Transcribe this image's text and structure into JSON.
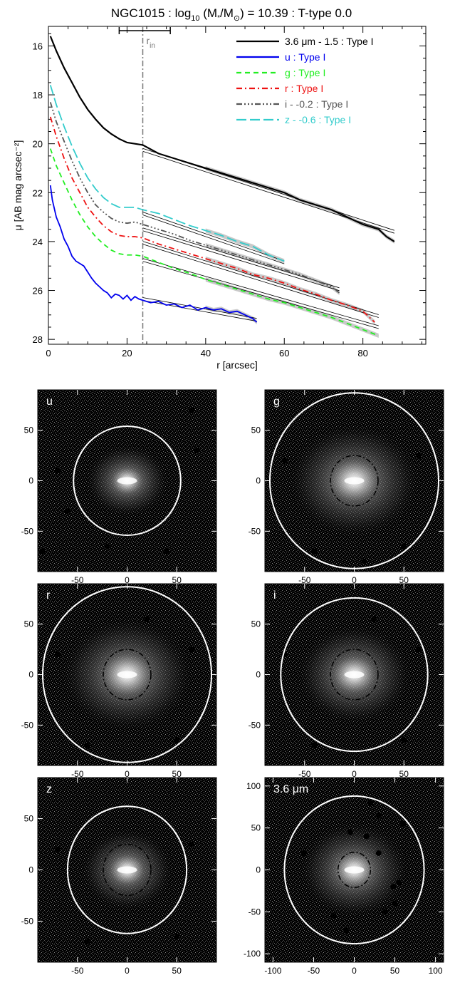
{
  "title": {
    "name": "NGC1015",
    "logmass": "10.39",
    "ttype": "0.0",
    "prefix": "NGC1015 : log",
    "sub10": "10",
    "paren_open": " (M",
    "star": "*",
    "slash": "/M",
    "sun": "⊙",
    "rest": ") = 10.39 : T-type 0.0"
  },
  "rin_label": "r",
  "rin_sub": "in",
  "colors": {
    "ch1": "#000000",
    "u": "#0000ee",
    "g": "#22ee22",
    "r": "#ee1111",
    "i": "#555555",
    "z": "#33cccc",
    "fit": "#000000",
    "err": "#bbbbbb",
    "ellipse": "#ffffff"
  },
  "chart_data": [
    {
      "type": "line",
      "title": "NGC1015 : log10 (M*/M⊙) = 10.39 : T-type 0.0",
      "xlabel": "r [arcsec]",
      "ylabel": "μ [AB mag arcsec⁻²]",
      "xlim": [
        0,
        96
      ],
      "ylim": [
        28.2,
        15.2
      ],
      "xticks": [
        "0",
        "20",
        "40",
        "60",
        "80"
      ],
      "yticks": [
        "16",
        "18",
        "20",
        "22",
        "24",
        "26",
        "28"
      ],
      "r_in": 24,
      "r_in_range": [
        18,
        31
      ],
      "legend_placement": "top-right",
      "series": [
        {
          "name": "3.6 μm - 1.5 : Type I",
          "key": "ch1",
          "dash": "",
          "x": [
            0.5,
            2,
            4,
            6,
            8,
            10,
            12,
            14,
            16,
            18,
            20,
            22,
            24,
            28,
            32,
            36,
            40,
            44,
            48,
            52,
            56,
            60,
            64,
            68,
            72,
            76,
            80,
            84,
            86,
            88
          ],
          "y": [
            15.6,
            16.2,
            16.9,
            17.5,
            18.1,
            18.6,
            19.0,
            19.35,
            19.6,
            19.8,
            19.95,
            20.0,
            20.05,
            20.4,
            20.6,
            20.8,
            21.0,
            21.2,
            21.4,
            21.6,
            21.8,
            22.0,
            22.3,
            22.5,
            22.7,
            23.0,
            23.3,
            23.5,
            23.8,
            24.0
          ],
          "fit": [
            [
              24,
              20.25
            ],
            [
              88,
              23.6
            ]
          ]
        },
        {
          "name": "u : Type I",
          "key": "u",
          "dash": "",
          "x": [
            0.5,
            1,
            2,
            3,
            4,
            5,
            6,
            7,
            8,
            9,
            10,
            11,
            12,
            13,
            14,
            15,
            16,
            17,
            18,
            19,
            20,
            21,
            22,
            23,
            24,
            26,
            28,
            30,
            32,
            34,
            36,
            38,
            40,
            42,
            44,
            46,
            48,
            50,
            52,
            53
          ],
          "y": [
            21.7,
            22.3,
            23.0,
            23.4,
            23.9,
            24.2,
            24.6,
            24.8,
            24.9,
            25.0,
            25.25,
            25.5,
            25.7,
            25.85,
            26.0,
            26.1,
            26.3,
            26.15,
            26.2,
            26.35,
            26.2,
            26.4,
            26.25,
            26.35,
            26.4,
            26.5,
            26.45,
            26.6,
            26.55,
            26.7,
            26.6,
            26.8,
            26.7,
            26.8,
            26.75,
            26.9,
            26.85,
            27.0,
            27.15,
            27.3
          ],
          "fit": [
            [
              24,
              26.35
            ],
            [
              53,
              27.2
            ]
          ]
        },
        {
          "name": "g : Type I",
          "key": "g",
          "dash": "7,5",
          "x": [
            0.5,
            2,
            4,
            6,
            8,
            10,
            12,
            14,
            16,
            18,
            20,
            22,
            24,
            28,
            32,
            36,
            40,
            44,
            48,
            52,
            56,
            60,
            64,
            68,
            72,
            76,
            80,
            84
          ],
          "y": [
            20.2,
            20.9,
            21.6,
            22.3,
            22.9,
            23.4,
            23.8,
            24.1,
            24.35,
            24.5,
            24.55,
            24.55,
            24.6,
            24.85,
            25.1,
            25.3,
            25.55,
            25.75,
            25.95,
            26.15,
            26.35,
            26.5,
            26.7,
            26.9,
            27.1,
            27.35,
            27.6,
            27.85
          ],
          "fit": [
            [
              24,
              24.75
            ],
            [
              84,
              27.5
            ]
          ]
        },
        {
          "name": "r : Type I",
          "key": "r",
          "dash": "8,4,2,4",
          "x": [
            0.5,
            2,
            4,
            6,
            8,
            10,
            12,
            14,
            16,
            18,
            20,
            22,
            24,
            28,
            32,
            36,
            40,
            44,
            48,
            52,
            56,
            60,
            64,
            68,
            72,
            76,
            80,
            83
          ],
          "y": [
            18.9,
            19.7,
            20.6,
            21.4,
            22.0,
            22.6,
            23.0,
            23.35,
            23.6,
            23.75,
            23.8,
            23.8,
            23.85,
            24.1,
            24.3,
            24.5,
            24.7,
            24.9,
            25.1,
            25.35,
            25.5,
            25.7,
            25.95,
            26.15,
            26.4,
            26.6,
            26.85,
            27.3
          ],
          "fit": [
            [
              24,
              24.05
            ],
            [
              84,
              27.05
            ]
          ]
        },
        {
          "name": "i - -0.2 : Type I",
          "key": "i",
          "dash": "8,3,2,3,2,3,2,3",
          "x": [
            0.5,
            2,
            4,
            6,
            8,
            10,
            12,
            14,
            16,
            18,
            20,
            22,
            24,
            28,
            32,
            36,
            40,
            44,
            48,
            52,
            56,
            60,
            64,
            68,
            72,
            74
          ],
          "y": [
            18.3,
            19.1,
            19.9,
            20.7,
            21.4,
            22.0,
            22.5,
            22.8,
            23.05,
            23.2,
            23.25,
            23.2,
            23.3,
            23.5,
            23.7,
            23.95,
            24.15,
            24.35,
            24.55,
            24.75,
            24.95,
            25.15,
            25.35,
            25.6,
            25.85,
            26.1
          ],
          "fit": [
            [
              24,
              23.5
            ],
            [
              74,
              25.95
            ]
          ]
        },
        {
          "name": "z - -0.6 : Type I",
          "key": "z",
          "dash": "14,5",
          "x": [
            0.5,
            2,
            4,
            6,
            8,
            10,
            12,
            14,
            16,
            18,
            20,
            22,
            24,
            28,
            32,
            36,
            40,
            44,
            48,
            52,
            56,
            60
          ],
          "y": [
            17.6,
            18.4,
            19.3,
            20.1,
            20.8,
            21.4,
            21.85,
            22.2,
            22.45,
            22.6,
            22.6,
            22.6,
            22.7,
            22.85,
            23.1,
            23.35,
            23.55,
            23.75,
            24.0,
            24.2,
            24.55,
            24.8
          ],
          "fit": [
            [
              24,
              22.85
            ],
            [
              60,
              24.85
            ]
          ]
        }
      ]
    }
  ],
  "images": [
    {
      "label": "u",
      "xticks": [
        "-50",
        "0",
        "50"
      ],
      "yticks": [
        "50",
        "0",
        "-50"
      ],
      "range": 90,
      "tick_vals": [
        -50,
        0,
        50
      ],
      "outer": [
        [
          0,
          0
        ],
        [
          54,
          54
        ]
      ],
      "inner": null
    },
    {
      "label": "g",
      "xticks": [
        "-50",
        "0",
        "50"
      ],
      "yticks": [
        "50",
        "0",
        "-50"
      ],
      "range": 90,
      "tick_vals": [
        -50,
        0,
        50
      ],
      "outer": [
        [
          0,
          0
        ],
        [
          85,
          87
        ]
      ],
      "inner": [
        [
          0,
          0
        ],
        [
          24,
          25
        ]
      ]
    },
    {
      "label": "r",
      "xticks": [
        "-50",
        "0",
        "50"
      ],
      "yticks": [
        "50",
        "0",
        "-50"
      ],
      "range": 90,
      "tick_vals": [
        -50,
        0,
        50
      ],
      "outer": [
        [
          0,
          0
        ],
        [
          85,
          87
        ]
      ],
      "inner": [
        [
          0,
          0
        ],
        [
          24,
          25
        ]
      ]
    },
    {
      "label": "i",
      "xticks": [
        "-50",
        "0",
        "50"
      ],
      "yticks": [
        "50",
        "0",
        "-50"
      ],
      "range": 90,
      "tick_vals": [
        -50,
        0,
        50
      ],
      "outer": [
        [
          0,
          0
        ],
        [
          74,
          76
        ]
      ],
      "inner": [
        [
          0,
          0
        ],
        [
          24,
          25
        ]
      ]
    },
    {
      "label": "z",
      "xticks": [
        "-50",
        "0",
        "50"
      ],
      "yticks": [
        "50",
        "0",
        "-50"
      ],
      "range": 90,
      "tick_vals": [
        -50,
        0,
        50
      ],
      "outer": [
        [
          0,
          0
        ],
        [
          60,
          62
        ]
      ],
      "inner": [
        [
          0,
          0
        ],
        [
          24,
          25
        ]
      ]
    },
    {
      "label": "3.6 μm",
      "xticks": [
        "-100",
        "-50",
        "0",
        "50",
        "100"
      ],
      "yticks": [
        "100",
        "50",
        "0",
        "-50",
        "-100"
      ],
      "range": 110,
      "tick_vals": [
        -100,
        -50,
        0,
        50,
        100
      ],
      "outer": [
        [
          0,
          0
        ],
        [
          86,
          88
        ]
      ],
      "inner": [
        [
          0,
          0
        ],
        [
          20,
          21
        ]
      ]
    }
  ]
}
